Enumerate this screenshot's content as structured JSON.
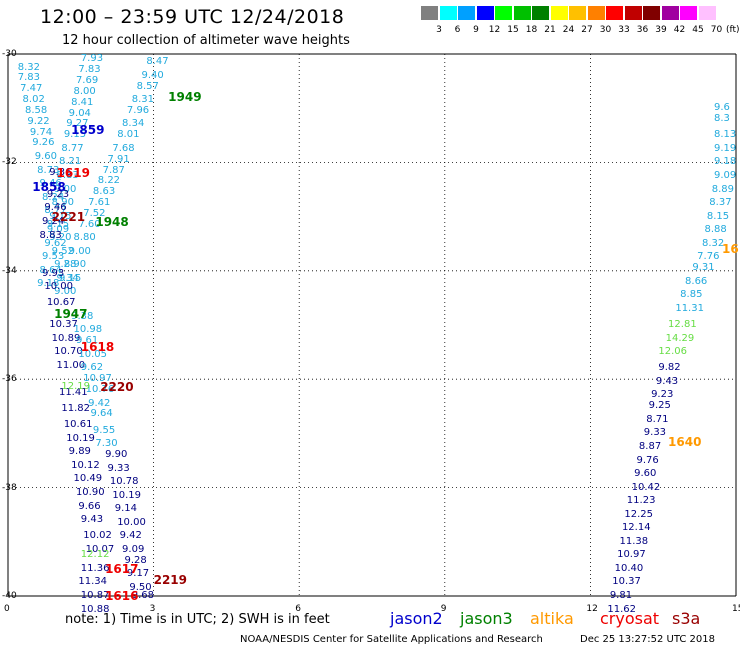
{
  "header": {
    "title": "12:00 – 23:59 UTC 12/24/2018",
    "subtitle": "12 hour collection of altimeter wave heights"
  },
  "legend": {
    "unit": "(ft)",
    "bins": [
      {
        "label": "3",
        "color": "#808080"
      },
      {
        "label": "6",
        "color": "#00ffff"
      },
      {
        "label": "9",
        "color": "#00a0ff"
      },
      {
        "label": "12",
        "color": "#0000ff"
      },
      {
        "label": "15",
        "color": "#00ff00"
      },
      {
        "label": "18",
        "color": "#00c000"
      },
      {
        "label": "21",
        "color": "#008000"
      },
      {
        "label": "24",
        "color": "#ffff00"
      },
      {
        "label": "27",
        "color": "#ffc000"
      },
      {
        "label": "30",
        "color": "#ff8000"
      },
      {
        "label": "33",
        "color": "#ff0000"
      },
      {
        "label": "36",
        "color": "#c00000"
      },
      {
        "label": "39",
        "color": "#800000"
      },
      {
        "label": "42",
        "color": "#a000a0"
      },
      {
        "label": "45",
        "color": "#ff00ff"
      },
      {
        "label": "70",
        "color": "#ffc0ff"
      }
    ]
  },
  "axes": {
    "lat_labels": [
      "-30",
      "-32",
      "-34",
      "-36",
      "-38",
      "-40"
    ],
    "lon_labels": [
      "0",
      "3",
      "6",
      "9",
      "12",
      "15"
    ]
  },
  "colors": {
    "jason2": "#0000cc",
    "jason3": "#008000",
    "altika": "#ff9900",
    "cryosat": "#ee0000",
    "s3a": "#990000",
    "swh_light": "#22aadd",
    "swh_dark": "#000080",
    "swh_green": "#66dd44"
  },
  "passes": [
    {
      "label": "1949",
      "color": "#008000",
      "lon": 3.3,
      "lat": -30.8
    },
    {
      "label": "1859",
      "color": "#0000cc",
      "lon": 1.3,
      "lat": -31.4
    },
    {
      "label": "1619",
      "color": "#ee0000",
      "lon": 1.0,
      "lat": -32.2
    },
    {
      "label": "1858",
      "color": "#0000cc",
      "lon": 0.5,
      "lat": -32.45
    },
    {
      "label": "2221",
      "color": "#990000",
      "lon": 0.9,
      "lat": -33.0
    },
    {
      "label": "1948",
      "color": "#008000",
      "lon": 1.8,
      "lat": -33.1
    },
    {
      "label": "1947",
      "color": "#008000",
      "lon": 0.95,
      "lat": -34.8
    },
    {
      "label": "1618",
      "color": "#ee0000",
      "lon": 1.5,
      "lat": -35.4
    },
    {
      "label": "2220",
      "color": "#990000",
      "lon": 1.9,
      "lat": -36.15
    },
    {
      "label": "1617",
      "color": "#ee0000",
      "lon": 2.0,
      "lat": -39.5
    },
    {
      "label": "2219",
      "color": "#990000",
      "lon": 3.0,
      "lat": -39.7
    },
    {
      "label": "1616",
      "color": "#ee0000",
      "lon": 2.0,
      "lat": -40.0
    },
    {
      "label": "1640",
      "color": "#ff9900",
      "lon": 13.6,
      "lat": -37.15
    },
    {
      "label": "16",
      "color": "#ff9900",
      "lon": 14.85,
      "lat": -33.6
    }
  ],
  "tracks": [
    {
      "name": "track-a",
      "color": "#22aadd",
      "values": [
        "8.32",
        "7.83",
        "7.47",
        "8.02",
        "8.58",
        "9.22",
        "9.74",
        "9.26",
        "9.60",
        "8.73",
        "9.46",
        "8.24",
        "8.77",
        "9.15",
        "9.20",
        "9.52",
        "9.28",
        "9.34"
      ],
      "lon": [
        0.2,
        0.2,
        0.25,
        0.3,
        0.35,
        0.4,
        0.45,
        0.5,
        0.55,
        0.6,
        0.65,
        0.7,
        0.75,
        0.8,
        0.85,
        0.9,
        0.95,
        1.0
      ],
      "lat": [
        -30.25,
        -30.45,
        -30.65,
        -30.85,
        -31.05,
        -31.25,
        -31.45,
        -31.65,
        -31.9,
        -32.15,
        -32.4,
        -32.65,
        -32.9,
        -33.15,
        -33.4,
        -33.65,
        -33.9,
        -34.15
      ]
    },
    {
      "name": "track-b",
      "color": "#22aadd",
      "values": [
        "7.93",
        "7.83",
        "7.69",
        "8.00",
        "8.41",
        "9.04",
        "9.27",
        "9.15",
        "8.77",
        "8.21",
        "8.83",
        "9.00",
        "8.90",
        "9.15",
        "9.09",
        "9.62",
        "9.53",
        "8.64",
        "9.18"
      ],
      "lon": [
        1.5,
        1.45,
        1.4,
        1.35,
        1.3,
        1.25,
        1.2,
        1.15,
        1.1,
        1.05,
        1.0,
        0.95,
        0.9,
        0.85,
        0.8,
        0.75,
        0.7,
        0.65,
        0.6
      ],
      "lat": [
        -30.1,
        -30.3,
        -30.5,
        -30.7,
        -30.9,
        -31.1,
        -31.3,
        -31.5,
        -31.75,
        -32.0,
        -32.25,
        -32.5,
        -32.75,
        -33.0,
        -33.25,
        -33.5,
        -33.75,
        -34.0,
        -34.25
      ]
    },
    {
      "name": "track-c",
      "color": "#22aadd",
      "values": [
        "8.47",
        "9.40",
        "8.57",
        "8.31",
        "7.96",
        "8.34",
        "8.01",
        "7.68",
        "7.91",
        "7.87",
        "8.22",
        "8.63",
        "7.61",
        "7.52",
        "7.60",
        "8.80",
        "9.00",
        "8.90",
        "9.15",
        "9.00"
      ],
      "lon": [
        2.85,
        2.75,
        2.65,
        2.55,
        2.45,
        2.35,
        2.25,
        2.15,
        2.05,
        1.95,
        1.85,
        1.75,
        1.65,
        1.55,
        1.45,
        1.35,
        1.25,
        1.15,
        1.05,
        0.95
      ],
      "lat": [
        -30.15,
        -30.4,
        -30.6,
        -30.85,
        -31.05,
        -31.3,
        -31.5,
        -31.75,
        -31.95,
        -32.15,
        -32.35,
        -32.55,
        -32.75,
        -32.95,
        -33.15,
        -33.4,
        -33.65,
        -33.9,
        -34.15,
        -34.4
      ]
    },
    {
      "name": "track-d",
      "color": "#000080",
      "values": [
        "9.36",
        "9.23",
        "9.46",
        "9.24",
        "8.83",
        "9.93",
        "10.00",
        "10.67",
        "10.37",
        "10.89",
        "10.70",
        "11.00",
        "11.41",
        "11.82",
        "10.61",
        "10.19",
        "9.89",
        "10.12",
        "10.49",
        "10.90",
        "9.66",
        "9.43",
        "10.02",
        "10.07"
      ],
      "lon": [
        0.85,
        0.8,
        0.75,
        0.7,
        0.65,
        0.7,
        0.75,
        0.8,
        0.85,
        0.9,
        0.95,
        1.0,
        1.05,
        1.1,
        1.15,
        1.2,
        1.25,
        1.3,
        1.35,
        1.4,
        1.45,
        1.5,
        1.55,
        1.6
      ],
      "lat": [
        -32.2,
        -32.6,
        -32.85,
        -33.1,
        -33.35,
        -34.05,
        -34.3,
        -34.6,
        -35.0,
        -35.25,
        -35.5,
        -35.75,
        -36.25,
        -36.55,
        -36.85,
        -37.1,
        -37.35,
        -37.6,
        -37.85,
        -38.1,
        -38.35,
        -38.6,
        -38.9,
        -39.15
      ]
    },
    {
      "name": "track-e",
      "color": "#22aadd",
      "values": [
        "9.38",
        "10.98",
        "9.61",
        "10.05",
        "9.62",
        "10.97",
        "10.76",
        "9.42",
        "9.64",
        "9.55",
        "7.30"
      ],
      "lon": [
        1.3,
        1.35,
        1.4,
        1.45,
        1.5,
        1.55,
        1.6,
        1.65,
        1.7,
        1.75,
        1.8
      ],
      "lat": [
        -34.85,
        -35.1,
        -35.3,
        -35.55,
        -35.8,
        -36.0,
        -36.2,
        -36.45,
        -36.65,
        -36.95,
        -37.2
      ]
    },
    {
      "name": "track-f",
      "color": "#000080",
      "values": [
        "9.90",
        "9.33",
        "10.78",
        "10.19",
        "9.14",
        "10.00",
        "9.42",
        "9.09",
        "9.28",
        "9.17",
        "9.50",
        "9.68"
      ],
      "lon": [
        2.0,
        2.05,
        2.1,
        2.15,
        2.2,
        2.25,
        2.3,
        2.35,
        2.4,
        2.45,
        2.5,
        2.55
      ],
      "lat": [
        -37.4,
        -37.65,
        -37.9,
        -38.15,
        -38.4,
        -38.65,
        -38.9,
        -39.15,
        -39.35,
        -39.6,
        -39.85,
        -40.0
      ]
    },
    {
      "name": "track-g",
      "color": "#000080",
      "values": [
        "11.36",
        "11.34",
        "10.87",
        "10.88"
      ],
      "lon": [
        1.5,
        1.45,
        1.5,
        1.5
      ],
      "lat": [
        -39.5,
        -39.75,
        -40.0,
        -40.25
      ]
    },
    {
      "name": "track-h",
      "color": "#66dd44",
      "values": [
        "12.19",
        "12.12"
      ],
      "lon": [
        1.1,
        1.5
      ],
      "lat": [
        -36.15,
        -39.25
      ]
    },
    {
      "name": "track-i",
      "color": "#22aadd",
      "values": [
        "9.6",
        "8.3",
        "8.13",
        "9.19",
        "9.18",
        "9.09",
        "8.89",
        "8.37",
        "8.15",
        "8.88",
        "8.32",
        "7.76",
        "9.31",
        "8.66",
        "8.85",
        "11.31"
      ],
      "lon": [
        15.0,
        14.95,
        14.85,
        14.75,
        14.7,
        14.6,
        14.5,
        14.45,
        14.4,
        14.35,
        14.3,
        14.2,
        14.1,
        13.95,
        13.85,
        13.75
      ],
      "lat": [
        -31.0,
        -31.2,
        -31.5,
        -31.75,
        -32.0,
        -32.25,
        -32.5,
        -32.75,
        -33.0,
        -33.25,
        -33.5,
        -33.75,
        -33.95,
        -34.2,
        -34.45,
        -34.7
      ]
    },
    {
      "name": "track-j",
      "color": "#66dd44",
      "values": [
        "12.81",
        "14.29",
        "12.06"
      ],
      "lon": [
        13.6,
        13.55,
        13.4
      ],
      "lat": [
        -35.0,
        -35.25,
        -35.5
      ]
    },
    {
      "name": "track-k",
      "color": "#000080",
      "values": [
        "9.82",
        "9.43",
        "9.23",
        "9.25",
        "8.71",
        "9.33",
        "8.87",
        "9.76",
        "9.60",
        "10.42",
        "11.23",
        "12.25",
        "12.14",
        "11.38",
        "10.97",
        "10.40",
        "10.37",
        "9.81",
        "11.62"
      ],
      "lon": [
        13.4,
        13.35,
        13.25,
        13.2,
        13.15,
        13.1,
        13.0,
        12.95,
        12.9,
        12.85,
        12.75,
        12.7,
        12.65,
        12.6,
        12.55,
        12.5,
        12.45,
        12.4,
        12.35
      ],
      "lat": [
        -35.8,
        -36.05,
        -36.3,
        -36.5,
        -36.75,
        -37.0,
        -37.25,
        -37.5,
        -37.75,
        -38.0,
        -38.25,
        -38.5,
        -38.75,
        -39.0,
        -39.25,
        -39.5,
        -39.75,
        -40.0,
        -40.25
      ]
    }
  ],
  "note": "note:  1) Time is in UTC; 2) SWH is in feet",
  "satellites": [
    {
      "label": "jason2",
      "color": "#0000cc"
    },
    {
      "label": "jason3",
      "color": "#008000"
    },
    {
      "label": "altika",
      "color": "#ff9900"
    },
    {
      "label": "cryosat",
      "color": "#ee0000"
    },
    {
      "label": "s3a",
      "color": "#990000"
    }
  ],
  "credit": "NOAA/NESDIS Center for Satellite Applications and Research",
  "timestamp": "Dec 25 13:27:52 UTC 2018"
}
